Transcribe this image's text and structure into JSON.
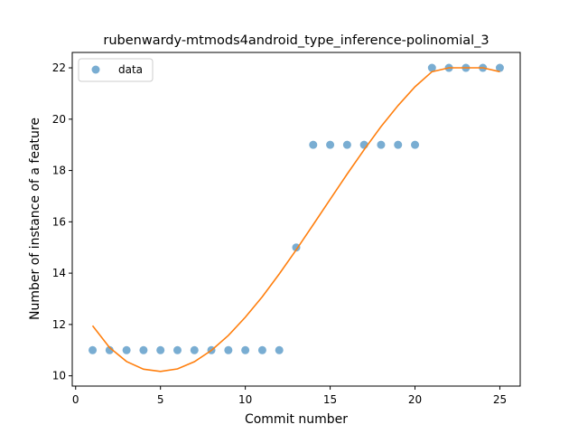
{
  "chart_data": {
    "type": "scatter",
    "title": "rubenwardy-mtmods4android_type_inference-polinomial_3",
    "xlabel": "Commit number",
    "ylabel": "Number of instance of a feature",
    "xlim": [
      -0.2,
      26.2
    ],
    "ylim": [
      9.6,
      22.6
    ],
    "xticks": [
      0,
      5,
      10,
      15,
      20,
      25
    ],
    "yticks": [
      10,
      12,
      14,
      16,
      18,
      20,
      22
    ],
    "grid": false,
    "legend": {
      "position": "top-left",
      "entries": [
        "data"
      ]
    },
    "series": [
      {
        "name": "data",
        "kind": "scatter",
        "color": "#1f77b4",
        "x": [
          1,
          2,
          3,
          4,
          5,
          6,
          7,
          8,
          9,
          10,
          11,
          12,
          13,
          14,
          15,
          16,
          17,
          18,
          19,
          20,
          21,
          22,
          23,
          24,
          25
        ],
        "y": [
          11,
          11,
          11,
          11,
          11,
          11,
          11,
          11,
          11,
          11,
          11,
          11,
          15,
          19,
          19,
          19,
          19,
          19,
          19,
          19,
          22,
          22,
          22,
          22,
          22
        ]
      },
      {
        "kind": "line",
        "color": "#ff7f0e",
        "x": [
          1,
          2,
          3,
          4,
          5,
          6,
          7,
          8,
          9,
          10,
          11,
          12,
          13,
          14,
          15,
          16,
          17,
          18,
          19,
          20,
          21,
          22,
          23,
          24,
          25
        ],
        "y": [
          11.95,
          11.1,
          10.56,
          10.26,
          10.17,
          10.27,
          10.55,
          10.99,
          11.57,
          12.28,
          13.08,
          13.97,
          14.91,
          15.89,
          16.88,
          17.86,
          18.81,
          19.71,
          20.53,
          21.26,
          21.85,
          22.0,
          22.0,
          22.0,
          21.85
        ]
      }
    ]
  }
}
